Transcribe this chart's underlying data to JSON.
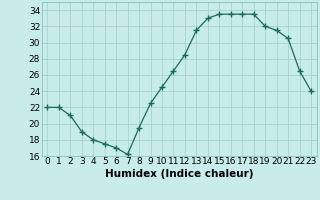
{
  "x": [
    0,
    1,
    2,
    3,
    4,
    5,
    6,
    7,
    8,
    9,
    10,
    11,
    12,
    13,
    14,
    15,
    16,
    17,
    18,
    19,
    20,
    21,
    22,
    23
  ],
  "y": [
    22,
    22,
    21,
    19,
    18,
    17.5,
    17,
    16.2,
    19.5,
    22.5,
    24.5,
    26.5,
    28.5,
    31.5,
    33,
    33.5,
    33.5,
    33.5,
    33.5,
    32,
    31.5,
    30.5,
    26.5,
    24
  ],
  "line_color": "#1a6b5a",
  "marker": "+",
  "marker_size": 4,
  "bg_color": "#c8ecea",
  "grid_color": "#9dcfcc",
  "xlabel": "Humidex (Indice chaleur)",
  "ylim": [
    16,
    35
  ],
  "xlim": [
    -0.5,
    23.5
  ],
  "yticks": [
    16,
    18,
    20,
    22,
    24,
    26,
    28,
    30,
    32,
    34
  ],
  "xticks": [
    0,
    1,
    2,
    3,
    4,
    5,
    6,
    7,
    8,
    9,
    10,
    11,
    12,
    13,
    14,
    15,
    16,
    17,
    18,
    19,
    20,
    21,
    22,
    23
  ],
  "tick_fontsize": 6.5,
  "label_fontsize": 7.5
}
